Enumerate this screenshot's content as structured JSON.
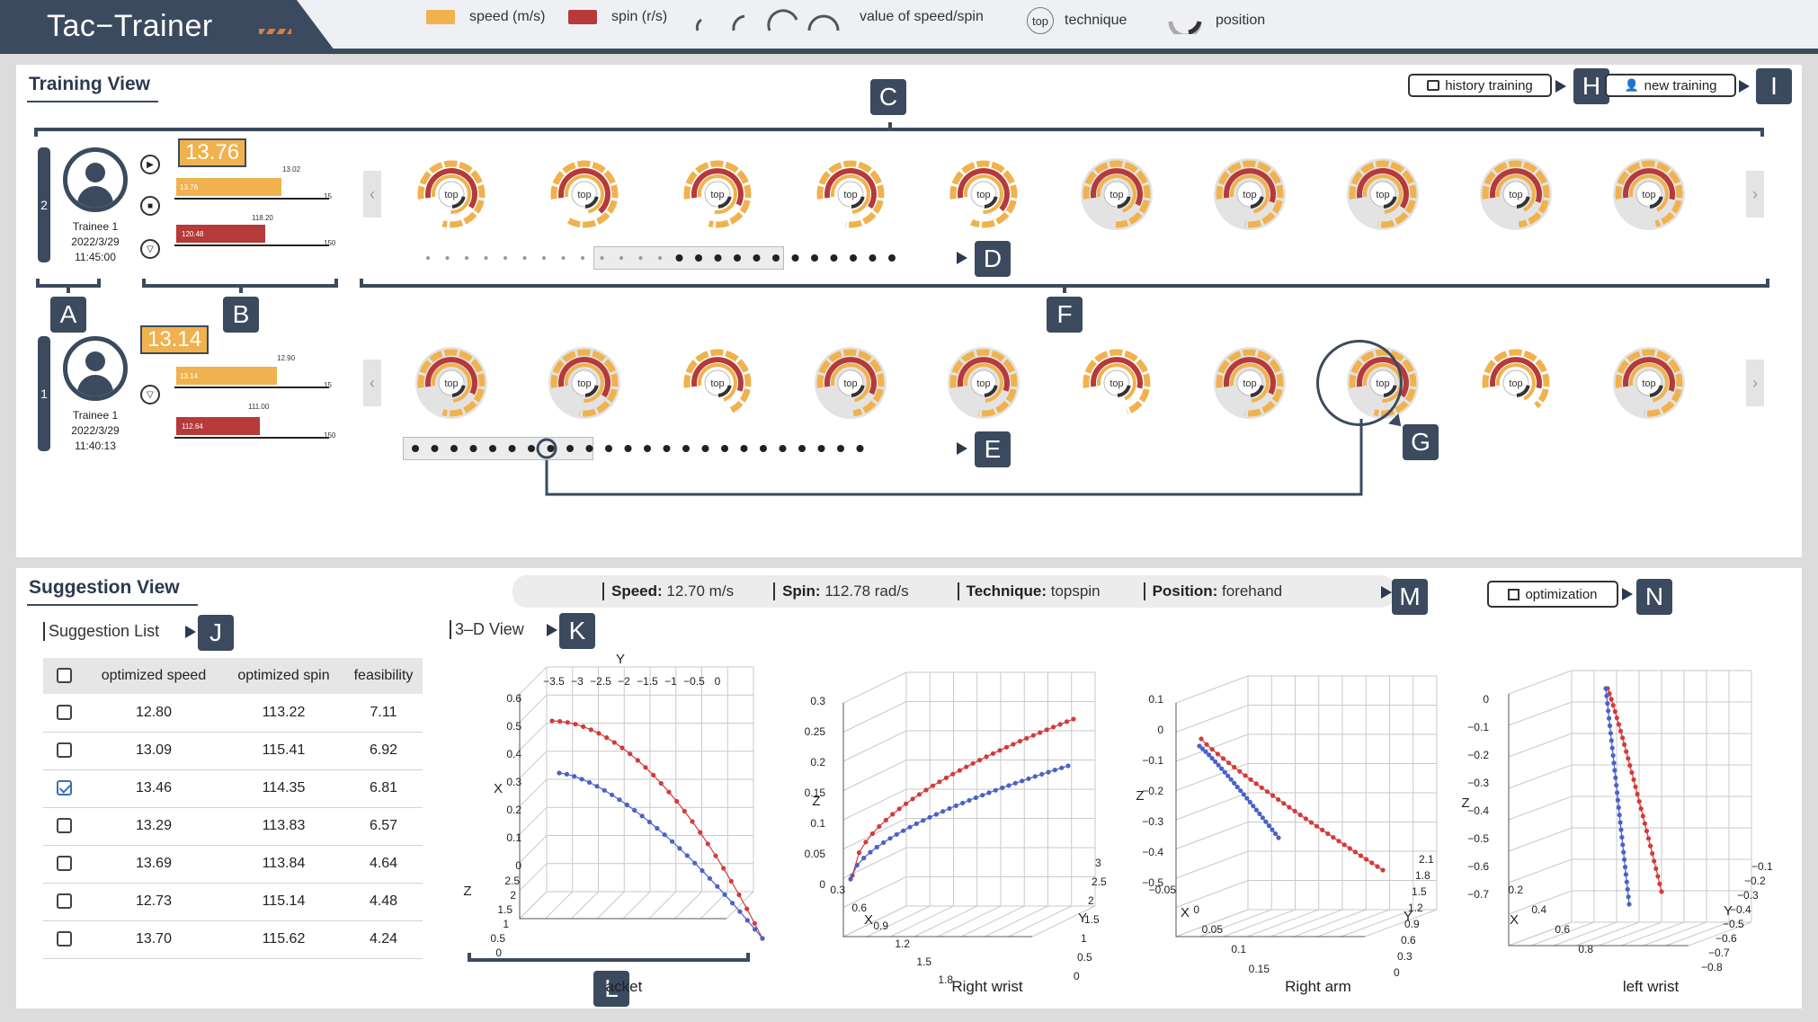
{
  "app": {
    "title": "Tac−Trainer"
  },
  "legend": {
    "speed": "speed (m/s)",
    "spin": "spin (r/s)",
    "value": "value of speed/spin",
    "technique_icon": "top",
    "technique": "technique",
    "position": "position",
    "colors": {
      "speed": "#f0b24e",
      "spin": "#b63a3a",
      "dark": "#3b4a5e"
    }
  },
  "training": {
    "title": "Training View",
    "history_button": "history training",
    "new_button": "new training",
    "trainees": [
      {
        "index": "2",
        "name": "Trainee 1",
        "date": "2022/3/29",
        "time": "11:45:00",
        "speed_value": "13.76",
        "speed_ref": "13.02",
        "speed_max": "15",
        "speed_bar_label": "13.76",
        "spin_ref": "118.20",
        "spin_bar_label": "120.48",
        "spin_max": "150",
        "speed_frac": 0.73,
        "spin_frac": 0.62
      },
      {
        "index": "1",
        "name": "Trainee 1",
        "date": "2022/3/29",
        "time": "11:40:13",
        "speed_value": "13.14",
        "speed_ref": "12.90",
        "speed_max": "15",
        "speed_bar_label": "13.14",
        "spin_ref": "111.00",
        "spin_bar_label": "112.64",
        "spin_max": "150",
        "speed_frac": 0.7,
        "spin_frac": 0.58
      }
    ],
    "technique_label": "top",
    "tags": {
      "A": "A",
      "B": "B",
      "C": "C",
      "D": "D",
      "E": "E",
      "F": "F",
      "G": "G",
      "H": "H",
      "I": "I"
    }
  },
  "suggestion": {
    "title": "Suggestion View",
    "list_title": "Suggestion List",
    "view3d_title": "3–D View",
    "optimization_button": "optimization",
    "info": {
      "speed_label": "Speed:",
      "speed_value": "12.70 m/s",
      "spin_label": "Spin:",
      "spin_value": "112.78 rad/s",
      "technique_label": "Technique:",
      "technique_value": "topspin",
      "position_label": "Position:",
      "position_value": "forehand"
    },
    "columns": [
      "optimized speed",
      "optimized spin",
      "feasibility"
    ],
    "rows": [
      {
        "speed": "12.80",
        "spin": "113.22",
        "feasibility": "7.11",
        "checked": false
      },
      {
        "speed": "13.09",
        "spin": "115.41",
        "feasibility": "6.92",
        "checked": false
      },
      {
        "speed": "13.46",
        "spin": "114.35",
        "feasibility": "6.81",
        "checked": true
      },
      {
        "speed": "13.29",
        "spin": "113.83",
        "feasibility": "6.57",
        "checked": false
      },
      {
        "speed": "13.69",
        "spin": "113.84",
        "feasibility": "4.64",
        "checked": false
      },
      {
        "speed": "12.73",
        "spin": "115.14",
        "feasibility": "4.48",
        "checked": false
      },
      {
        "speed": "13.70",
        "spin": "115.62",
        "feasibility": "4.24",
        "checked": false
      }
    ],
    "plots": [
      {
        "label": "acket",
        "y_ticks": [
          "0.6",
          "0.5",
          "0.4",
          "0.3",
          "0.2",
          "0.1",
          "0"
        ],
        "top_ticks": [
          "−3.5",
          "−3",
          "−2.5",
          "−2",
          "−1.5",
          "−1",
          "−0.5",
          "0"
        ],
        "axis_y": "Y",
        "axis_x": "X",
        "axis_z": "Z",
        "z_ticks": [
          "2.5",
          "2",
          "1.5",
          "1",
          "0.5",
          "0"
        ]
      },
      {
        "label": "Right wrist",
        "y_ticks": [
          "0.3",
          "0.25",
          "0.2",
          "0.15",
          "0.1",
          "0.05",
          "0"
        ],
        "x_ticks": [
          "0.3",
          "0.6",
          "0.9",
          "1.2",
          "1.5",
          "1.8"
        ],
        "side_ticks": [
          "3",
          "2.5",
          "2",
          "1.5",
          "1",
          "0.5",
          "0"
        ],
        "axis_x": "X",
        "axis_y": "Y",
        "axis_z": "Z"
      },
      {
        "label": "Right arm",
        "y_ticks": [
          "0.1",
          "0",
          "−0.1",
          "−0.2",
          "−0.3",
          "−0.4",
          "−0.5"
        ],
        "x_ticks": [
          "−0.05",
          "0",
          "0.05",
          "0.1",
          "0.15"
        ],
        "side_ticks": [
          "2.1",
          "1.8",
          "1.5",
          "1.2",
          "0.9",
          "0.6",
          "0.3",
          "0"
        ],
        "axis_x": "X",
        "axis_y": "Y",
        "axis_z": "Z"
      },
      {
        "label": "left wrist",
        "y_ticks": [
          "0",
          "−0.1",
          "−0.2",
          "−0.3",
          "−0.4",
          "−0.5",
          "−0.6",
          "−0.7"
        ],
        "x_ticks": [
          "0.2",
          "0.4",
          "0.6",
          "0.8"
        ],
        "side_ticks": [
          "−0.1",
          "−0.2",
          "−0.3",
          "−0.4",
          "−0.5",
          "−0.6",
          "−0.7",
          "−0.8"
        ],
        "axis_x": "X",
        "axis_y": "Y",
        "axis_z": "Z"
      }
    ],
    "tags": {
      "J": "J",
      "K": "K",
      "L": "L",
      "M": "M",
      "N": "N"
    }
  }
}
